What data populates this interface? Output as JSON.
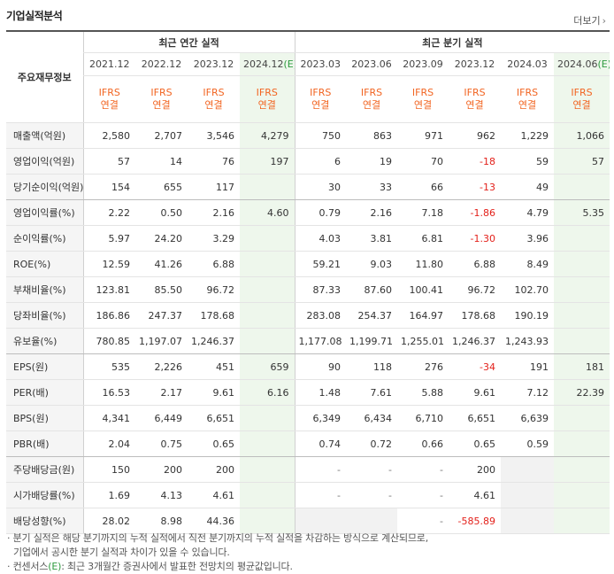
{
  "header": {
    "title": "기업실적분석",
    "more_label": "더보기",
    "more_arrow": "›"
  },
  "table": {
    "row_header_label": "주요재무정보",
    "groups": [
      "최근 연간 실적",
      "최근 분기 실적"
    ],
    "periods": [
      "2021.12",
      "2022.12",
      "2023.12",
      "2024.12",
      "2023.03",
      "2023.06",
      "2023.09",
      "2023.12",
      "2024.03",
      "2024.06"
    ],
    "estimate_mark": "(E)",
    "ifrs_line1": "IFRS",
    "ifrs_line2": "연결",
    "rows": [
      {
        "label": "매출액(억원)",
        "cells": [
          "2,580",
          "2,707",
          "3,546",
          "4,279",
          "750",
          "863",
          "971",
          "962",
          "1,229",
          "1,066"
        ]
      },
      {
        "label": "영업이익(억원)",
        "cells": [
          "57",
          "14",
          "76",
          "197",
          "6",
          "19",
          "70",
          "-18",
          "59",
          "57"
        ]
      },
      {
        "label": "당기순이익(억원)",
        "cells": [
          "154",
          "655",
          "117",
          "",
          "30",
          "33",
          "66",
          "-13",
          "49",
          ""
        ]
      },
      {
        "label": "영업이익률(%)",
        "cells": [
          "2.22",
          "0.50",
          "2.16",
          "4.60",
          "0.79",
          "2.16",
          "7.18",
          "-1.86",
          "4.79",
          "5.35"
        ]
      },
      {
        "label": "순이익률(%)",
        "cells": [
          "5.97",
          "24.20",
          "3.29",
          "",
          "4.03",
          "3.81",
          "6.81",
          "-1.30",
          "3.96",
          ""
        ]
      },
      {
        "label": "ROE(%)",
        "cells": [
          "12.59",
          "41.26",
          "6.88",
          "",
          "59.21",
          "9.03",
          "11.80",
          "6.88",
          "8.49",
          ""
        ]
      },
      {
        "label": "부채비율(%)",
        "cells": [
          "123.81",
          "85.50",
          "96.72",
          "",
          "87.33",
          "87.60",
          "100.41",
          "96.72",
          "102.70",
          ""
        ]
      },
      {
        "label": "당좌비율(%)",
        "cells": [
          "186.86",
          "247.37",
          "178.68",
          "",
          "283.08",
          "254.37",
          "164.97",
          "178.68",
          "190.19",
          ""
        ]
      },
      {
        "label": "유보율(%)",
        "cells": [
          "780.85",
          "1,197.07",
          "1,246.37",
          "",
          "1,177.08",
          "1,199.71",
          "1,255.01",
          "1,246.37",
          "1,243.93",
          ""
        ]
      },
      {
        "label": "EPS(원)",
        "cells": [
          "535",
          "2,226",
          "451",
          "659",
          "90",
          "118",
          "276",
          "-34",
          "191",
          "181"
        ]
      },
      {
        "label": "PER(배)",
        "cells": [
          "16.53",
          "2.17",
          "9.61",
          "6.16",
          "1.48",
          "7.61",
          "5.88",
          "9.61",
          "7.12",
          "22.39"
        ]
      },
      {
        "label": "BPS(원)",
        "cells": [
          "4,341",
          "6,449",
          "6,651",
          "",
          "6,349",
          "6,434",
          "6,710",
          "6,651",
          "6,639",
          ""
        ]
      },
      {
        "label": "PBR(배)",
        "cells": [
          "2.04",
          "0.75",
          "0.65",
          "",
          "0.74",
          "0.72",
          "0.66",
          "0.65",
          "0.59",
          ""
        ]
      },
      {
        "label": "주당배당금(원)",
        "cells": [
          "150",
          "200",
          "200",
          "",
          "-",
          "-",
          "-",
          "200",
          "",
          ""
        ]
      },
      {
        "label": "시가배당률(%)",
        "cells": [
          "1.69",
          "4.13",
          "4.61",
          "",
          "-",
          "-",
          "-",
          "4.61",
          "",
          ""
        ]
      },
      {
        "label": "배당성향(%)",
        "cells": [
          "28.02",
          "8.98",
          "44.36",
          "",
          "",
          "",
          "-",
          "-585.89",
          "",
          ""
        ]
      }
    ]
  },
  "notes": {
    "line1": "· 분기 실적은 해당 분기까지의 누적 실적에서 직전 분기까지의 누적 실적을 차감하는 방식으로 계산되므로,",
    "line2": "기업에서 공시한 분기 실적과 차이가 있을 수 있습니다.",
    "line3_prefix": "· 컨센서스",
    "line3_mark": "(E)",
    "line3_suffix": ": 최근 3개월간 증권사에서 발표한 전망치의 평균값입니다."
  }
}
